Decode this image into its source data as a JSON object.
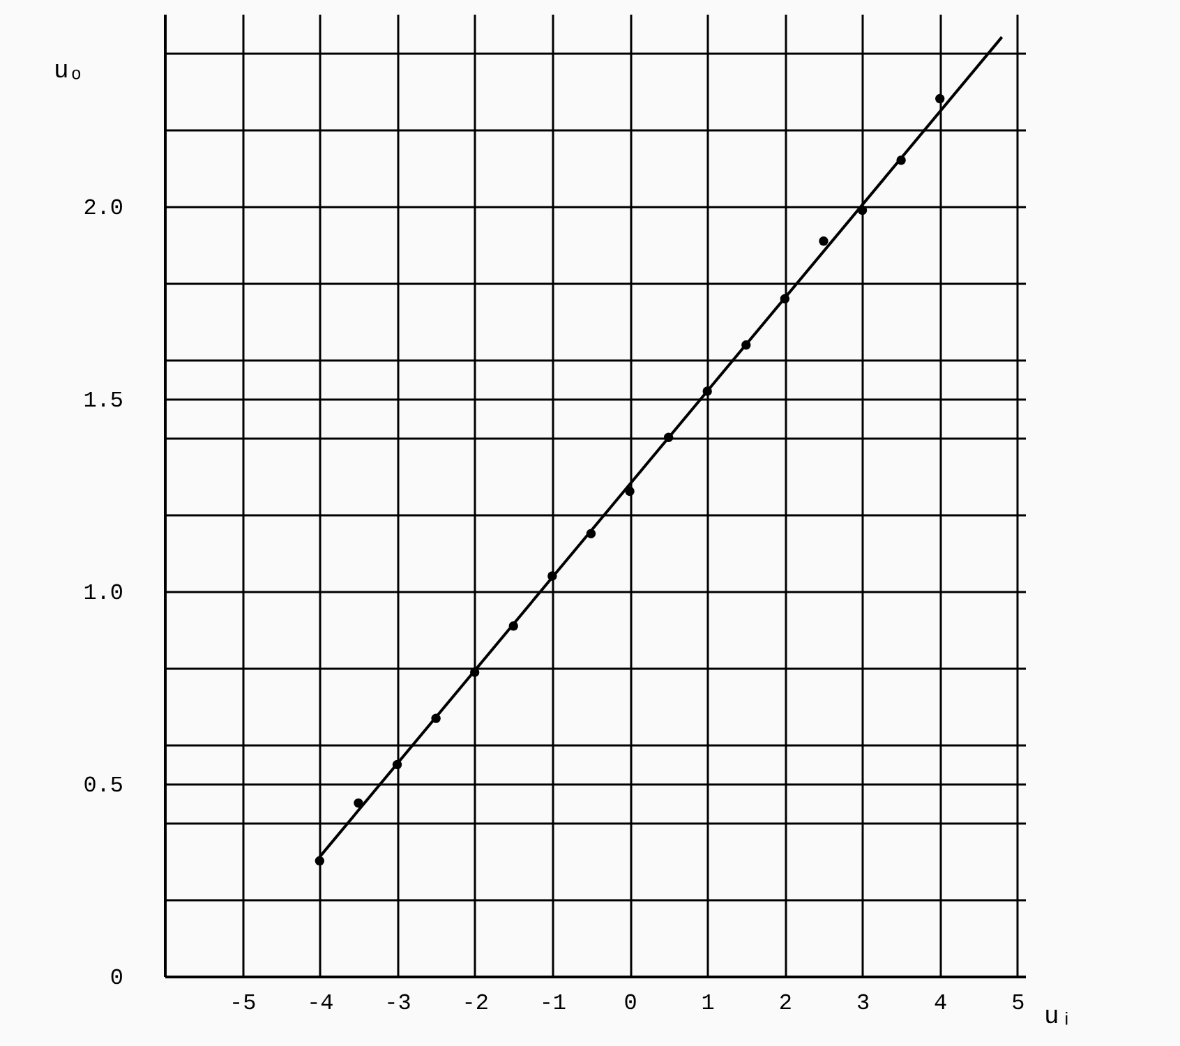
{
  "chart_data": {
    "type": "scatter",
    "xlabel": "uᵢ",
    "ylabel": "uₒ",
    "xlim": [
      -6,
      5.1
    ],
    "ylim": [
      0,
      2.5
    ],
    "xticks": [
      -5,
      -4,
      -3,
      -2,
      -1,
      0,
      1,
      2,
      3,
      4,
      5
    ],
    "yticks": [
      {
        "value": 0,
        "label": "0"
      },
      {
        "value": 0.2,
        "label": null
      },
      {
        "value": 0.4,
        "label": null
      },
      {
        "value": 0.5,
        "label": "0.5"
      },
      {
        "value": 0.6,
        "label": null
      },
      {
        "value": 0.8,
        "label": null
      },
      {
        "value": 1.0,
        "label": "1.0"
      },
      {
        "value": 1.2,
        "label": null
      },
      {
        "value": 1.4,
        "label": null
      },
      {
        "value": 1.5,
        "label": "1.5"
      },
      {
        "value": 1.6,
        "label": null
      },
      {
        "value": 1.8,
        "label": null
      },
      {
        "value": 2.0,
        "label": "2.0"
      },
      {
        "value": 2.2,
        "label": null
      },
      {
        "value": 2.4,
        "label": null
      }
    ],
    "grid": true,
    "series": [
      {
        "type": "line",
        "color": "#000000",
        "line_style": "solid",
        "x": [
          -4,
          4.8
        ],
        "values": [
          0.31,
          2.44
        ]
      },
      {
        "color": "#000000",
        "marker": "circle",
        "x": [
          -4,
          -3.5,
          -3,
          -2.5,
          -2,
          -1.5,
          -1,
          -0.5,
          0,
          0.5,
          1,
          1.5,
          2,
          2.5,
          3,
          3.5,
          4
        ],
        "values": [
          0.3,
          0.45,
          0.55,
          0.67,
          0.79,
          0.91,
          1.04,
          1.15,
          1.26,
          1.4,
          1.52,
          1.64,
          1.76,
          1.91,
          1.99,
          2.12,
          2.28
        ]
      }
    ]
  }
}
